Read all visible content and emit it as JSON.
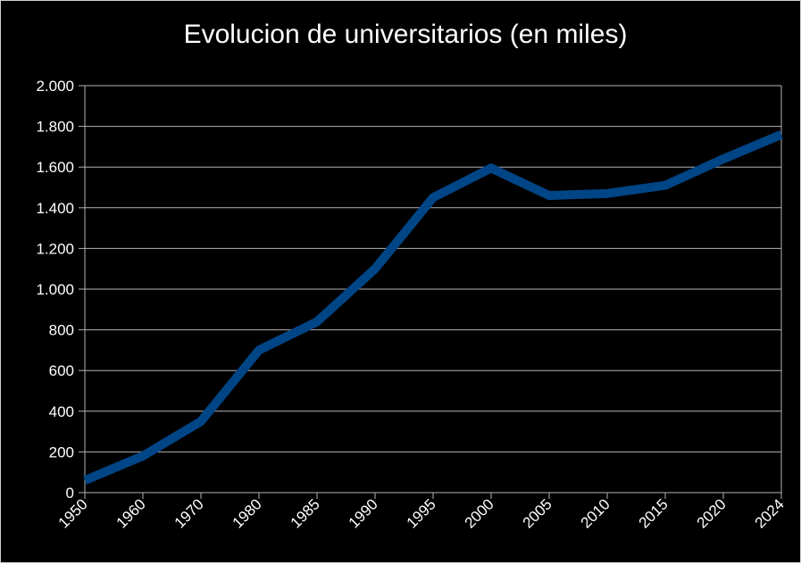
{
  "chart_data": {
    "type": "line",
    "title": "Evolucion de universitarios (en miles)",
    "xlabel": "",
    "ylabel": "",
    "categories": [
      "1950",
      "1960",
      "1970",
      "1980",
      "1985",
      "1990",
      "1995",
      "2000",
      "2005",
      "2010",
      "2015",
      "2020",
      "2024"
    ],
    "series": [
      {
        "values": [
          60,
          180,
          350,
          700,
          840,
          1100,
          1450,
          1595,
          1460,
          1470,
          1510,
          1640,
          1760
        ]
      }
    ],
    "ylim": [
      0,
      2000
    ],
    "y_ticks": [
      0,
      200,
      400,
      600,
      800,
      1000,
      1200,
      1400,
      1600,
      1800,
      2000
    ],
    "y_tick_labels": [
      "0",
      "200",
      "400",
      "600",
      "800",
      "1.000",
      "1.200",
      "1.400",
      "1.600",
      "1.800",
      "2.000"
    ],
    "grid": true,
    "legend": "none",
    "colors": {
      "background": "#000000",
      "line": "#004586",
      "grid": "#b3b3b3",
      "text": "#ffffff"
    }
  }
}
